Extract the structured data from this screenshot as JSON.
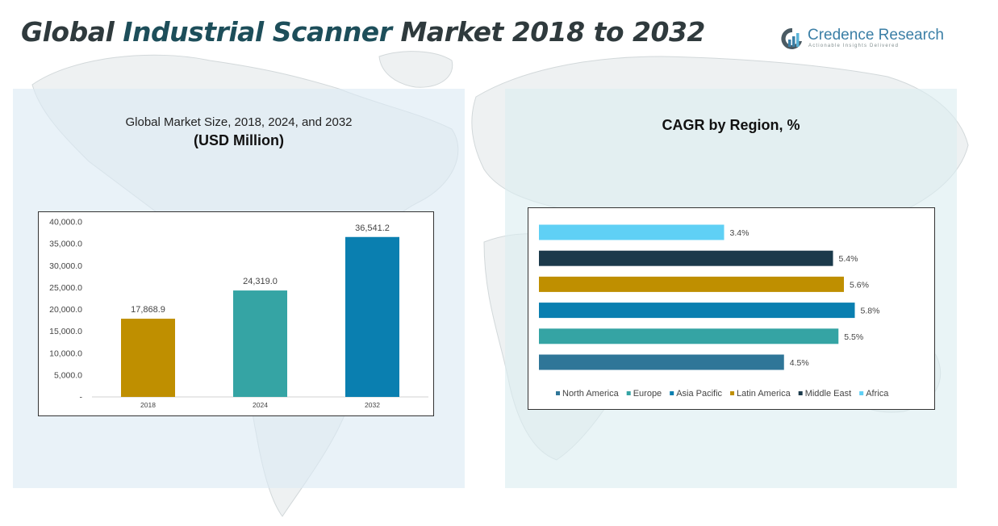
{
  "title": {
    "prefix": "Global ",
    "accent": "Industrial Scanner",
    "suffix": " Market 2018 to 2032"
  },
  "logo": {
    "name": "Credence Research",
    "tagline": "Actionable Insights Delivered"
  },
  "left_panel": {
    "subtitle": "Global Market Size, 2018, 2024, and 2032",
    "unit": "(USD Million)"
  },
  "right_panel": {
    "title": "CAGR by Region, %"
  },
  "chart_data": [
    {
      "type": "bar",
      "title": "Global Market Size, 2018, 2024, and 2032",
      "ylabel": "(USD Million)",
      "categories": [
        "2018",
        "2024",
        "2032"
      ],
      "values": [
        17868.9,
        24319.0,
        36541.2
      ],
      "value_labels": [
        "17,868.9",
        "24,319.0",
        "36,541.2"
      ],
      "colors": [
        "#bf8f00",
        "#35a4a4",
        "#0a7fb0"
      ],
      "ylim": [
        0,
        40000
      ],
      "yticks": [
        0,
        5000,
        10000,
        15000,
        20000,
        25000,
        30000,
        35000,
        40000
      ],
      "ytick_labels": [
        "-",
        "5,000.0",
        "10,000.0",
        "15,000.0",
        "20,000.0",
        "25,000.0",
        "30,000.0",
        "35,000.0",
        "40,000.0"
      ],
      "grid": false
    },
    {
      "type": "bar",
      "orientation": "horizontal",
      "title": "CAGR by Region, %",
      "categories": [
        "North America",
        "Europe",
        "Asia Pacific",
        "Latin America",
        "Middle East",
        "Africa"
      ],
      "values": [
        4.5,
        5.5,
        5.8,
        5.6,
        5.4,
        3.4
      ],
      "value_labels": [
        "4.5%",
        "5.5%",
        "5.8%",
        "5.6%",
        "5.4%",
        "3.4%"
      ],
      "colors": [
        "#2f7698",
        "#35a4a4",
        "#0a7fb0",
        "#bf8f00",
        "#1b3a4b",
        "#5fd0f5"
      ],
      "legend": "bottom",
      "grid": false
    }
  ]
}
